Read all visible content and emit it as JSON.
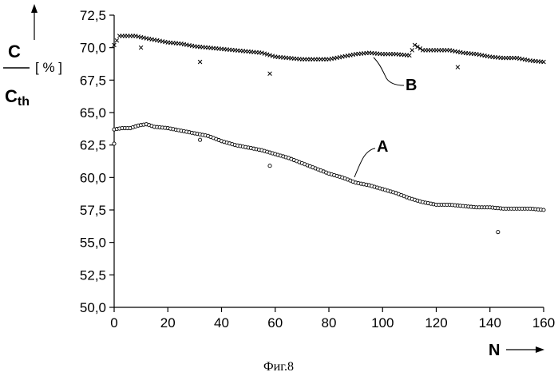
{
  "chart_data": {
    "type": "scatter",
    "title": "",
    "xlabel": "N",
    "ylabel_num": "C",
    "ylabel_den_main": "C",
    "ylabel_den_sub": "th",
    "ylabel_unit": "[ % ]",
    "xlim": [
      0,
      160
    ],
    "ylim": [
      50.0,
      72.5
    ],
    "x_ticks": [
      "0",
      "20",
      "40",
      "60",
      "80",
      "100",
      "120",
      "140",
      "160"
    ],
    "y_ticks": [
      "50,0",
      "52,5",
      "55,0",
      "57,5",
      "60,0",
      "62,5",
      "65,0",
      "67,5",
      "70,0",
      "72,5"
    ],
    "grid": false,
    "series": [
      {
        "name": "A",
        "marker": "circle",
        "points": [
          [
            0,
            63.7
          ],
          [
            3,
            63.8
          ],
          [
            6,
            63.8
          ],
          [
            9,
            64.0
          ],
          [
            12,
            64.1
          ],
          [
            15,
            63.9
          ],
          [
            20,
            63.8
          ],
          [
            25,
            63.6
          ],
          [
            30,
            63.4
          ],
          [
            35,
            63.2
          ],
          [
            40,
            62.8
          ],
          [
            45,
            62.5
          ],
          [
            50,
            62.3
          ],
          [
            55,
            62.1
          ],
          [
            60,
            61.8
          ],
          [
            65,
            61.5
          ],
          [
            70,
            61.1
          ],
          [
            75,
            60.7
          ],
          [
            80,
            60.3
          ],
          [
            85,
            60.0
          ],
          [
            90,
            59.6
          ],
          [
            95,
            59.4
          ],
          [
            100,
            59.1
          ],
          [
            105,
            58.8
          ],
          [
            110,
            58.4
          ],
          [
            115,
            58.1
          ],
          [
            120,
            57.9
          ],
          [
            125,
            57.9
          ],
          [
            130,
            57.8
          ],
          [
            135,
            57.7
          ],
          [
            140,
            57.7
          ],
          [
            145,
            57.6
          ],
          [
            150,
            57.6
          ],
          [
            155,
            57.6
          ],
          [
            160,
            57.5
          ]
        ],
        "outliers": [
          [
            0,
            62.6
          ],
          [
            32,
            62.9
          ],
          [
            58,
            60.9
          ],
          [
            143,
            55.8
          ]
        ]
      },
      {
        "name": "B",
        "marker": "x",
        "points": [
          [
            0,
            70.2
          ],
          [
            2,
            70.9
          ],
          [
            5,
            70.9
          ],
          [
            8,
            70.9
          ],
          [
            10,
            70.8
          ],
          [
            15,
            70.6
          ],
          [
            20,
            70.4
          ],
          [
            25,
            70.3
          ],
          [
            30,
            70.1
          ],
          [
            35,
            70.0
          ],
          [
            40,
            69.9
          ],
          [
            45,
            69.8
          ],
          [
            50,
            69.7
          ],
          [
            55,
            69.6
          ],
          [
            60,
            69.3
          ],
          [
            65,
            69.2
          ],
          [
            70,
            69.1
          ],
          [
            75,
            69.1
          ],
          [
            80,
            69.1
          ],
          [
            85,
            69.3
          ],
          [
            90,
            69.5
          ],
          [
            95,
            69.6
          ],
          [
            100,
            69.5
          ],
          [
            105,
            69.5
          ],
          [
            110,
            69.4
          ],
          [
            112,
            70.2
          ],
          [
            115,
            69.8
          ],
          [
            120,
            69.8
          ],
          [
            125,
            69.8
          ],
          [
            130,
            69.6
          ],
          [
            135,
            69.5
          ],
          [
            140,
            69.3
          ],
          [
            145,
            69.2
          ],
          [
            150,
            69.2
          ],
          [
            155,
            69.0
          ],
          [
            160,
            68.9
          ]
        ],
        "outliers": [
          [
            10,
            70.0
          ],
          [
            32,
            68.9
          ],
          [
            58,
            68.0
          ],
          [
            128,
            68.5
          ]
        ]
      }
    ],
    "caption": "Фиг.8"
  }
}
